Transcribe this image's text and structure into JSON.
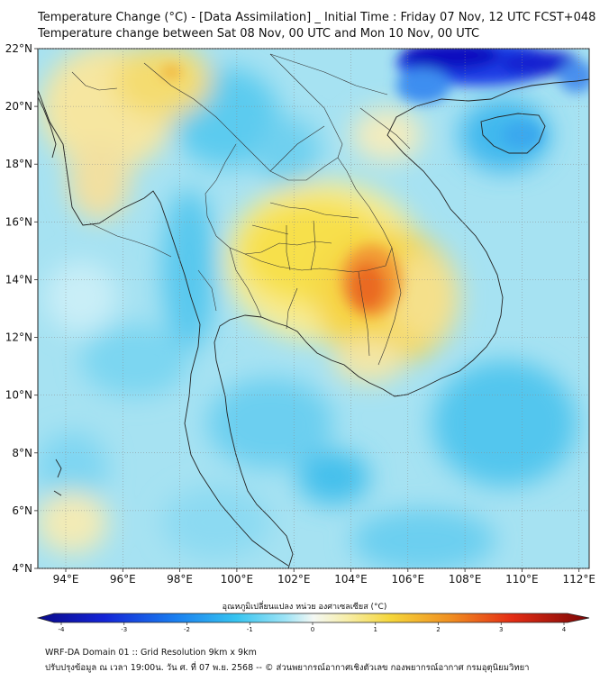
{
  "title_line1": "Temperature Change (°C) - [Data Assimilation] _ Initial Time : Friday 07 Nov, 12 UTC FCST+048",
  "title_line2": "Temperature change between Sat 08 Nov, 00 UTC and Mon 10 Nov, 00 UTC",
  "lat_labels": [
    "22°N",
    "20°N",
    "18°N",
    "16°N",
    "14°N",
    "12°N",
    "10°N",
    "8°N",
    "6°N",
    "4°N"
  ],
  "lon_labels": [
    "94°E",
    "96°E",
    "98°E",
    "100°E",
    "102°E",
    "104°E",
    "106°E",
    "108°E",
    "110°E",
    "112°E"
  ],
  "colorbar": {
    "label": "อุณหภูมิเปลี่ยนแปลง หน่วย องศาเซลเซียส (°C)",
    "ticks": [
      "-4",
      "-3",
      "-2",
      "-1",
      "0",
      "1",
      "2",
      "3",
      "4"
    ],
    "min": -4,
    "max": 4
  },
  "footer_line1": "WRF-DA Domain 01 :: Grid Resolution 9km x 9km",
  "footer_line2": "ปรับปรุงข้อมูล ณ เวลา 19:00น. วัน ศ. ที่ 07 พ.ย. 2568 -- © ส่วนพยากรณ์อากาศเชิงตัวเลข กองพยากรณ์อากาศ กรมอุตุนิยมวิทยา",
  "colors": {
    "background_field": "#9fdff2",
    "warm_light": "#f6ecb0",
    "warm": "#f6d24a",
    "hot": "#f08a2c",
    "hottest": "#e4401e",
    "cool": "#55c8ec",
    "cold": "#1018c8"
  },
  "icons": [
    "coastline-icon",
    "country-border-icon"
  ]
}
